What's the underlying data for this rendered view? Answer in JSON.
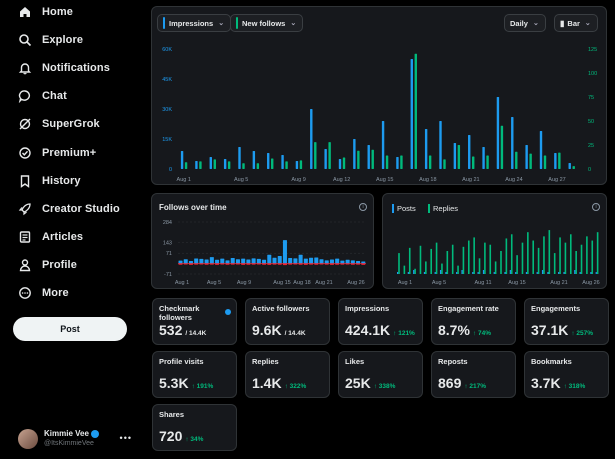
{
  "colors": {
    "blue": "#1d9bf0",
    "green": "#00ba7c",
    "red": "#f4212e"
  },
  "sidebar": {
    "items": [
      {
        "label": "Home",
        "icon": "home-icon"
      },
      {
        "label": "Explore",
        "icon": "search-icon"
      },
      {
        "label": "Notifications",
        "icon": "bell-icon"
      },
      {
        "label": "Chat",
        "icon": "chat-icon"
      },
      {
        "label": "SuperGrok",
        "icon": "grok-icon"
      },
      {
        "label": "Premium+",
        "icon": "premium-icon"
      },
      {
        "label": "History",
        "icon": "bookmark-icon"
      },
      {
        "label": "Creator Studio",
        "icon": "rocket-icon"
      },
      {
        "label": "Articles",
        "icon": "article-icon"
      },
      {
        "label": "Profile",
        "icon": "person-icon"
      },
      {
        "label": "More",
        "icon": "more-circle-icon"
      }
    ],
    "post_label": "Post",
    "profile": {
      "name": "Kimmie Vee",
      "handle": "@ItsKimmieVee"
    }
  },
  "main_chart": {
    "pill_impressions": "Impressions",
    "pill_new_follows": "New follows",
    "pill_interval": "Daily",
    "pill_type": "Bar"
  },
  "follows_chart": {
    "title": "Follows over time"
  },
  "posts_chart": {
    "tab_posts": "Posts",
    "tab_replies": "Replies"
  },
  "chart_data": [
    {
      "type": "bar",
      "categories": [
        "Aug 1",
        "Aug 2",
        "Aug 3",
        "Aug 4",
        "Aug 5",
        "Aug 6",
        "Aug 7",
        "Aug 8",
        "Aug 9",
        "Aug 10",
        "Aug 11",
        "Aug 12",
        "Aug 13",
        "Aug 14",
        "Aug 15",
        "Aug 16",
        "Aug 17",
        "Aug 18",
        "Aug 19",
        "Aug 20",
        "Aug 21",
        "Aug 22",
        "Aug 23",
        "Aug 24",
        "Aug 25",
        "Aug 26",
        "Aug 27",
        "Aug 28"
      ],
      "x_tick_labels": [
        "Aug 1",
        "Aug 5",
        "Aug 9",
        "Aug 12",
        "Aug 15",
        "Aug 18",
        "Aug 21",
        "Aug 24",
        "Aug 27"
      ],
      "series": [
        {
          "name": "Impressions",
          "axis": "left",
          "values": [
            9,
            4,
            6,
            5,
            11,
            9,
            8,
            7,
            4,
            30,
            10,
            5,
            15,
            12,
            24,
            6,
            55,
            20,
            24,
            13,
            17,
            11,
            36,
            26,
            12,
            19,
            8,
            3
          ]
        },
        {
          "name": "New follows",
          "axis": "right",
          "values": [
            7,
            8,
            10,
            8,
            6,
            6,
            11,
            8,
            9,
            28,
            28,
            12,
            19,
            20,
            14,
            14,
            120,
            14,
            10,
            25,
            13,
            14,
            45,
            18,
            16,
            14,
            17,
            3
          ]
        }
      ],
      "left_ticks": [
        "0",
        "15K",
        "30K",
        "45K",
        "60K"
      ],
      "left_ylim": [
        0,
        60000
      ],
      "right_ticks": [
        "0",
        "25",
        "50",
        "75",
        "100",
        "125"
      ],
      "right_ylim": [
        0,
        125
      ]
    },
    {
      "type": "bar",
      "title": "Follows over time",
      "x_tick_labels": [
        "Aug 1",
        "Aug 5",
        "Aug 9",
        "Aug 15",
        "Aug 18",
        "Aug 21",
        "Aug 26"
      ],
      "y_ticks": [
        "284",
        "143",
        "71",
        "-71"
      ],
      "series": [
        {
          "name": "gained",
          "values": [
            20,
            30,
            18,
            35,
            32,
            28,
            44,
            26,
            34,
            22,
            38,
            30,
            34,
            28,
            36,
            32,
            26,
            60,
            40,
            52,
            160,
            38,
            36,
            60,
            34,
            40,
            42,
            30,
            22,
            28,
            34,
            20,
            26,
            22,
            18,
            14
          ]
        },
        {
          "name": "lost",
          "values": [
            -8,
            -6,
            -9,
            -7,
            -6,
            -8,
            -7,
            -9,
            -6,
            -8,
            -7,
            -6,
            -9,
            -8,
            -7,
            -6,
            -8,
            -9,
            -7,
            -8,
            -10,
            -7,
            -6,
            -8,
            -9,
            -7,
            -8,
            -6,
            -7,
            -9,
            -8,
            -7,
            -6,
            -8,
            -7,
            -9
          ]
        }
      ],
      "ylim": [
        -71,
        284
      ]
    },
    {
      "type": "bar",
      "x_tick_labels": [
        "Aug 1",
        "Aug 5",
        "Aug 11",
        "Aug 15",
        "Aug 21",
        "Aug 26"
      ],
      "series": [
        {
          "name": "Posts",
          "values": [
            1,
            0,
            1,
            2,
            0,
            1,
            0,
            1,
            2,
            1,
            0,
            1,
            2,
            0,
            1,
            1,
            2,
            0,
            1,
            0,
            1,
            2,
            1,
            0,
            1,
            0,
            1,
            2,
            1,
            0,
            1,
            1,
            0,
            2,
            1,
            0,
            1,
            1
          ]
        },
        {
          "name": "Replies",
          "values": [
            20,
            8,
            25,
            5,
            27,
            12,
            24,
            30,
            10,
            22,
            28,
            8,
            26,
            32,
            35,
            15,
            30,
            28,
            12,
            22,
            34,
            38,
            18,
            30,
            40,
            32,
            25,
            36,
            42,
            20,
            35,
            30,
            38,
            22,
            28,
            36,
            32,
            40
          ]
        }
      ]
    }
  ],
  "cards": [
    {
      "label": "Checkmark followers",
      "value": "532",
      "sub": "/ 14.4K",
      "delta": "",
      "dot": true
    },
    {
      "label": "Active followers",
      "value": "9.6K",
      "sub": "/ 14.4K",
      "delta": ""
    },
    {
      "label": "Impressions",
      "value": "424.1K",
      "sub": "",
      "delta": "↑ 121%"
    },
    {
      "label": "Engagement rate",
      "value": "8.7%",
      "sub": "",
      "delta": "↑ 74%"
    },
    {
      "label": "Engagements",
      "value": "37.1K",
      "sub": "",
      "delta": "↑ 257%"
    },
    {
      "label": "Profile visits",
      "value": "5.3K",
      "sub": "",
      "delta": "↑ 191%"
    },
    {
      "label": "Replies",
      "value": "1.4K",
      "sub": "",
      "delta": "↑ 322%"
    },
    {
      "label": "Likes",
      "value": "25K",
      "sub": "",
      "delta": "↑ 338%"
    },
    {
      "label": "Reposts",
      "value": "869",
      "sub": "",
      "delta": "↑ 217%"
    },
    {
      "label": "Bookmarks",
      "value": "3.7K",
      "sub": "",
      "delta": "↑ 318%"
    },
    {
      "label": "Shares",
      "value": "720",
      "sub": "",
      "delta": "↑ 34%"
    }
  ]
}
